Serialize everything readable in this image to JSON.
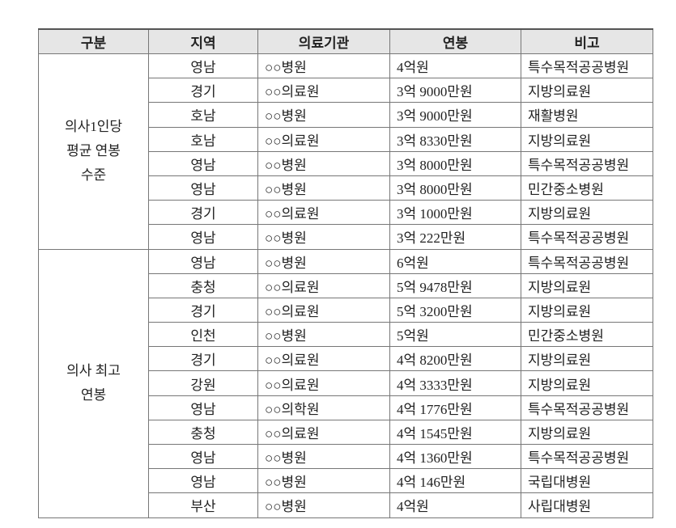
{
  "headers": [
    "구분",
    "지역",
    "의료기관",
    "연봉",
    "비고"
  ],
  "groups": [
    {
      "label": "의사1인당\n평균 연봉\n수준",
      "rows": [
        [
          "영남",
          "○○병원",
          "4억원",
          "특수목적공공병원"
        ],
        [
          "경기",
          "○○의료원",
          "3억 9000만원",
          "지방의료원"
        ],
        [
          "호남",
          "○○병원",
          "3억 9000만원",
          "재활병원"
        ],
        [
          "호남",
          "○○의료원",
          "3억 8330만원",
          "지방의료원"
        ],
        [
          "영남",
          "○○병원",
          "3억 8000만원",
          "특수목적공공병원"
        ],
        [
          "영남",
          "○○병원",
          "3억 8000만원",
          "민간중소병원"
        ],
        [
          "경기",
          "○○의료원",
          "3억 1000만원",
          "지방의료원"
        ],
        [
          "영남",
          "○○병원",
          "3억 222만원",
          "특수목적공공병원"
        ]
      ]
    },
    {
      "label": "의사 최고\n연봉",
      "rows": [
        [
          "영남",
          "○○병원",
          "6억원",
          "특수목적공공병원"
        ],
        [
          "충청",
          "○○의료원",
          "5억 9478만원",
          "지방의료원"
        ],
        [
          "경기",
          "○○의료원",
          "5억 3200만원",
          "지방의료원"
        ],
        [
          "인천",
          "○○병원",
          "5억원",
          "민간중소병원"
        ],
        [
          "경기",
          "○○의료원",
          "4억 8200만원",
          "지방의료원"
        ],
        [
          "강원",
          "○○의료원",
          "4억 3333만원",
          "지방의료원"
        ],
        [
          "영남",
          "○○의학원",
          "4억 1776만원",
          "특수목적공공병원"
        ],
        [
          "충청",
          "○○의료원",
          "4억 1545만원",
          "지방의료원"
        ],
        [
          "영남",
          "○○병원",
          "4억 1360만원",
          "특수목적공공병원"
        ],
        [
          "영남",
          "○○병원",
          "4억 146만원",
          "국립대병원"
        ],
        [
          "부산",
          "○○병원",
          "4억원",
          "사립대병원"
        ]
      ]
    }
  ]
}
